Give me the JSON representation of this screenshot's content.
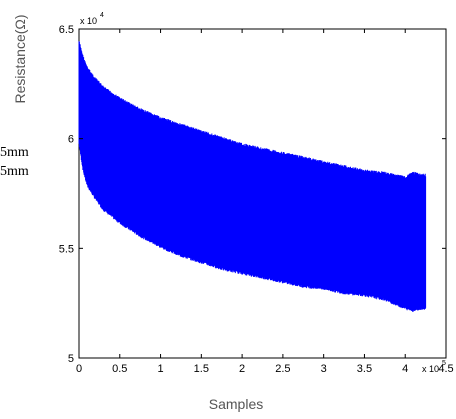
{
  "side_text": [
    "5mm",
    "5mm"
  ],
  "chart_data": {
    "type": "area",
    "xlabel": "Samples",
    "ylabel": "Resistance(Ω)",
    "x_multiplier_label": "x 10",
    "x_multiplier_exp": "5",
    "y_multiplier_label": "x 10",
    "y_multiplier_exp": "4",
    "xlim": [
      0,
      4.5
    ],
    "ylim": [
      5,
      6.5
    ],
    "xticks": [
      "0",
      "0.5",
      "1",
      "1.5",
      "2",
      "2.5",
      "3",
      "3.5",
      "4",
      "4.5"
    ],
    "yticks": [
      "5",
      "5.5",
      "6",
      "6.5"
    ],
    "grid": false,
    "series": [
      {
        "color": "#0000ff",
        "x": [
          0,
          0.05,
          0.1,
          0.2,
          0.3,
          0.5,
          0.75,
          1.0,
          1.25,
          1.5,
          1.75,
          2.0,
          2.25,
          2.5,
          2.75,
          3.0,
          3.25,
          3.5,
          3.75,
          4.0,
          4.1,
          4.2,
          4.25
        ],
        "upper": [
          6.45,
          6.38,
          6.33,
          6.28,
          6.24,
          6.19,
          6.14,
          6.1,
          6.07,
          6.04,
          6.01,
          5.98,
          5.96,
          5.94,
          5.92,
          5.9,
          5.88,
          5.86,
          5.85,
          5.83,
          5.85,
          5.84,
          5.84
        ],
        "lower": [
          5.97,
          5.85,
          5.78,
          5.72,
          5.67,
          5.61,
          5.55,
          5.5,
          5.46,
          5.43,
          5.4,
          5.38,
          5.36,
          5.34,
          5.32,
          5.31,
          5.29,
          5.28,
          5.26,
          5.22,
          5.21,
          5.22,
          5.22
        ]
      }
    ]
  }
}
